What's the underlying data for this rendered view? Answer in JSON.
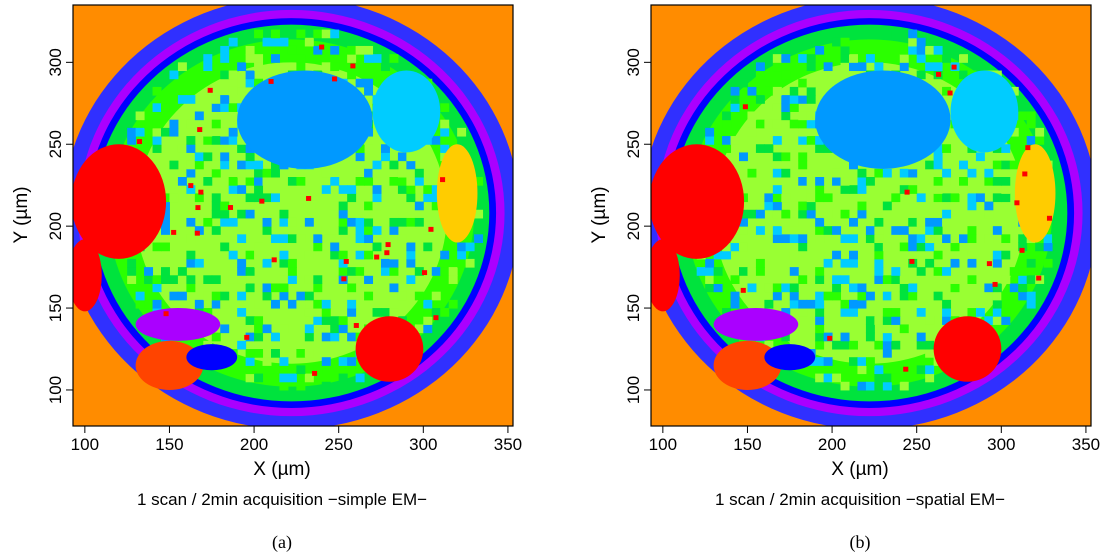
{
  "chart_data": [
    {
      "type": "heatmap",
      "panel_label": "(a)",
      "caption": "1 scan / 2min acquisition −simple EM−",
      "xlabel": "X (µm)",
      "ylabel": "Y (µm)",
      "xlim": [
        93,
        353
      ],
      "ylim": [
        78,
        335
      ],
      "xticks": [
        "100",
        "150",
        "200",
        "250",
        "300",
        "350"
      ],
      "yticks": [
        "100",
        "150",
        "200",
        "250",
        "300"
      ],
      "grid": false,
      "legend": "none",
      "colors": {
        "background": "#ff8c00",
        "outer_ring": "#3030ff",
        "purple": "#aa00ff",
        "blue": "#0000ff",
        "green": "#00e33d",
        "bright_green": "#2bff00",
        "lime": "#99ff33",
        "sky_blue": "#0099ff",
        "cyan": "#00ccff",
        "light_cyan": "#00ffee",
        "red": "#ff0000",
        "red_orange": "#ff4400",
        "yellow": "#ffcc00"
      },
      "regions": [
        {
          "color": "red",
          "cx": 120,
          "cy": 215,
          "rx": 28,
          "ry": 35
        },
        {
          "color": "red",
          "cx": 100,
          "cy": 170,
          "rx": 10,
          "ry": 22
        },
        {
          "color": "red_orange",
          "cx": 150,
          "cy": 115,
          "rx": 20,
          "ry": 15
        },
        {
          "color": "red",
          "cx": 280,
          "cy": 125,
          "rx": 20,
          "ry": 20
        },
        {
          "color": "purple",
          "cx": 155,
          "cy": 140,
          "rx": 25,
          "ry": 10
        },
        {
          "color": "sky_blue",
          "cx": 230,
          "cy": 265,
          "rx": 40,
          "ry": 30
        },
        {
          "color": "cyan",
          "cx": 290,
          "cy": 270,
          "rx": 20,
          "ry": 25
        },
        {
          "color": "yellow",
          "cx": 320,
          "cy": 220,
          "rx": 12,
          "ry": 30
        },
        {
          "color": "blue",
          "cx": 175,
          "cy": 120,
          "rx": 15,
          "ry": 8
        }
      ]
    },
    {
      "type": "heatmap",
      "panel_label": "(b)",
      "caption": "1 scan / 2min acquisition −spatial EM−",
      "xlabel": "X (µm)",
      "ylabel": "Y (µm)",
      "xlim": [
        93,
        353
      ],
      "ylim": [
        78,
        335
      ],
      "xticks": [
        "100",
        "150",
        "200",
        "250",
        "300",
        "350"
      ],
      "yticks": [
        "100",
        "150",
        "200",
        "250",
        "300"
      ],
      "grid": false,
      "legend": "none",
      "colors": {
        "background": "#ff8c00",
        "outer_ring": "#3030ff",
        "purple": "#aa00ff",
        "blue": "#0000ff",
        "green": "#00e33d",
        "bright_green": "#2bff00",
        "lime": "#99ff33",
        "sky_blue": "#0099ff",
        "cyan": "#00ccff",
        "light_cyan": "#00ffee",
        "red": "#ff0000",
        "red_orange": "#ff4400",
        "yellow": "#ffcc00"
      },
      "regions": [
        {
          "color": "red",
          "cx": 120,
          "cy": 215,
          "rx": 28,
          "ry": 35
        },
        {
          "color": "red",
          "cx": 100,
          "cy": 170,
          "rx": 10,
          "ry": 22
        },
        {
          "color": "red_orange",
          "cx": 150,
          "cy": 115,
          "rx": 20,
          "ry": 15
        },
        {
          "color": "red",
          "cx": 280,
          "cy": 125,
          "rx": 20,
          "ry": 20
        },
        {
          "color": "purple",
          "cx": 155,
          "cy": 140,
          "rx": 25,
          "ry": 10
        },
        {
          "color": "sky_blue",
          "cx": 230,
          "cy": 265,
          "rx": 40,
          "ry": 30
        },
        {
          "color": "cyan",
          "cx": 290,
          "cy": 270,
          "rx": 20,
          "ry": 25
        },
        {
          "color": "yellow",
          "cx": 320,
          "cy": 220,
          "rx": 12,
          "ry": 30
        },
        {
          "color": "blue",
          "cx": 175,
          "cy": 120,
          "rx": 15,
          "ry": 8
        }
      ]
    }
  ]
}
